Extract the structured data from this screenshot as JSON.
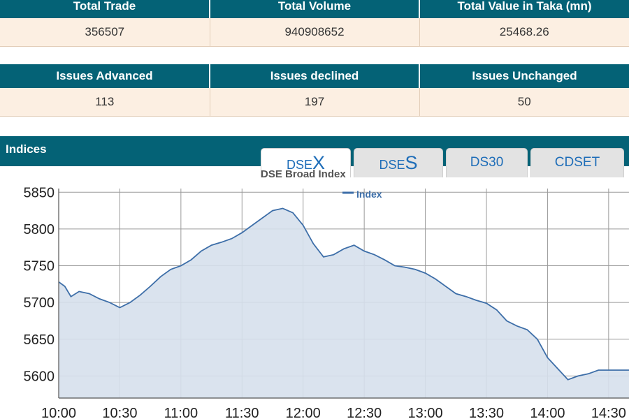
{
  "summary": {
    "headers": [
      "Total Trade",
      "Total Volume",
      "Total Value in Taka (mn)"
    ],
    "values": [
      "356507",
      "940908652",
      "25468.26"
    ]
  },
  "issues": {
    "headers": [
      "Issues Advanced",
      "Issues declined",
      "Issues Unchanged"
    ],
    "values": [
      "113",
      "197",
      "50"
    ]
  },
  "indices": {
    "title": "Indices",
    "tabs": [
      {
        "prefix": "DSE",
        "suffix": "X"
      },
      {
        "prefix": "DSE",
        "suffix": "S"
      },
      {
        "label": "DS30"
      },
      {
        "label": "CDSET"
      }
    ],
    "active_tab": "DSEX"
  },
  "colors": {
    "header_bg": "#046276",
    "row_bg": "#fcefe2",
    "line": "#3d6ea8",
    "area": "#d6e0ec"
  },
  "chart_data": {
    "type": "area",
    "title": "DSE Broad Index",
    "legend": [
      "Index"
    ],
    "legend_placement": "top",
    "grid": true,
    "ylim": [
      5570,
      5855
    ],
    "yticks": [
      5600,
      5650,
      5700,
      5750,
      5800,
      5850
    ],
    "xticks": [
      "10:00",
      "10:30",
      "11:00",
      "11:30",
      "12:00",
      "12:30",
      "13:00",
      "13:30",
      "14:00",
      "14:30"
    ],
    "series": [
      {
        "name": "Index",
        "x": [
          "10:00",
          "10:03",
          "10:06",
          "10:10",
          "10:15",
          "10:20",
          "10:25",
          "10:30",
          "10:35",
          "10:40",
          "10:45",
          "10:50",
          "10:55",
          "11:00",
          "11:05",
          "11:10",
          "11:15",
          "11:20",
          "11:25",
          "11:30",
          "11:35",
          "11:40",
          "11:45",
          "11:50",
          "11:55",
          "12:00",
          "12:05",
          "12:10",
          "12:15",
          "12:20",
          "12:25",
          "12:30",
          "12:35",
          "12:40",
          "12:45",
          "12:50",
          "12:55",
          "13:00",
          "13:05",
          "13:10",
          "13:15",
          "13:20",
          "13:25",
          "13:30",
          "13:35",
          "13:40",
          "13:45",
          "13:50",
          "13:55",
          "14:00",
          "14:05",
          "14:10",
          "14:15",
          "14:20",
          "14:25",
          "14:30"
        ],
        "values": [
          5728,
          5722,
          5708,
          5715,
          5712,
          5705,
          5700,
          5693,
          5700,
          5710,
          5722,
          5735,
          5745,
          5750,
          5758,
          5770,
          5778,
          5782,
          5787,
          5795,
          5805,
          5815,
          5825,
          5828,
          5822,
          5805,
          5780,
          5762,
          5765,
          5773,
          5778,
          5770,
          5765,
          5758,
          5750,
          5748,
          5745,
          5740,
          5732,
          5722,
          5712,
          5708,
          5703,
          5699,
          5690,
          5675,
          5668,
          5663,
          5650,
          5625,
          5610,
          5595,
          5600,
          5603,
          5608,
          5608
        ]
      }
    ]
  }
}
